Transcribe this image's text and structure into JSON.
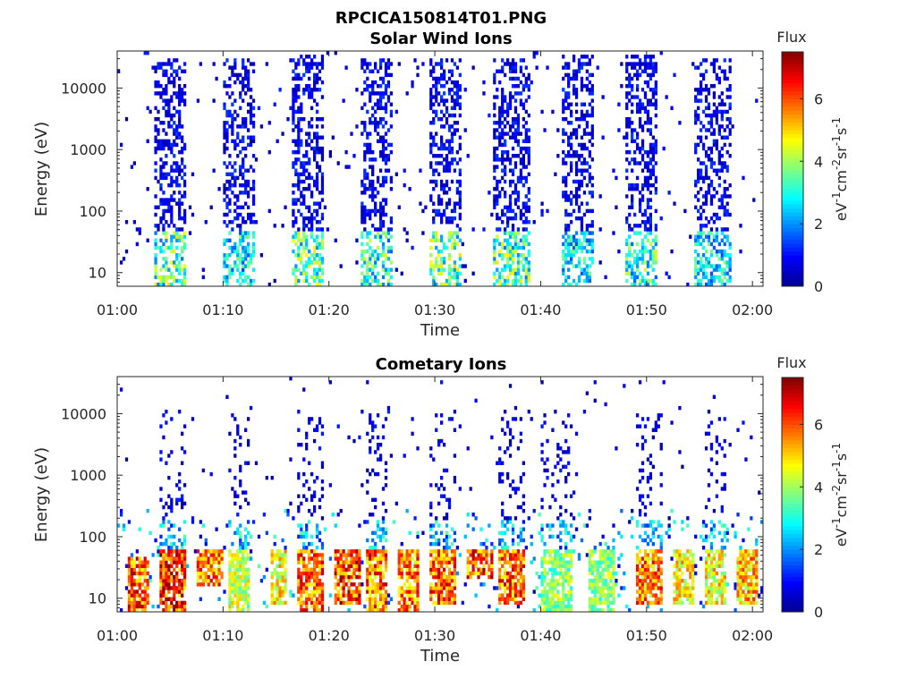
{
  "figure": {
    "title": "RPCICA150814T01.PNG"
  },
  "colors": {
    "colormap": [
      "#00008f",
      "#0000ff",
      "#0080ff",
      "#00ffff",
      "#80ff80",
      "#ffff00",
      "#ff8000",
      "#ff0000",
      "#800000"
    ]
  },
  "chart_data": [
    {
      "type": "heatmap",
      "title": "Solar Wind Ions",
      "xlabel": "Time",
      "ylabel": "Energy (eV)",
      "x_ticks": [
        "01:00",
        "01:10",
        "01:20",
        "01:30",
        "01:40",
        "01:50",
        "02:00"
      ],
      "x_range_minutes": [
        0,
        61
      ],
      "y_scale": "log",
      "y_ticks": [
        "10",
        "100",
        "1000",
        "10000"
      ],
      "y_range": [
        6,
        40000
      ],
      "colorbar": {
        "title": "Flux",
        "label": "eV-1cm-2sr-1s-1",
        "ticks": [
          "0",
          "2",
          "4",
          "6"
        ],
        "range": [
          0,
          7.5
        ]
      },
      "bursts": [
        {
          "start": 3.5,
          "end": 6.5,
          "emin": 6,
          "emax": 30000,
          "low_flux": 4.5
        },
        {
          "start": 10,
          "end": 13,
          "emin": 6,
          "emax": 30000,
          "low_flux": 3.5
        },
        {
          "start": 16.5,
          "end": 19.5,
          "emin": 6,
          "emax": 35000,
          "low_flux": 4.5
        },
        {
          "start": 23,
          "end": 26,
          "emin": 6,
          "emax": 30000,
          "low_flux": 4.0
        },
        {
          "start": 29.5,
          "end": 32.5,
          "emin": 6,
          "emax": 30000,
          "low_flux": 4.5
        },
        {
          "start": 35.5,
          "end": 39,
          "emin": 6,
          "emax": 30000,
          "low_flux": 4.5
        },
        {
          "start": 42,
          "end": 45,
          "emin": 6,
          "emax": 35000,
          "low_flux": 3.5
        },
        {
          "start": 48,
          "end": 51,
          "emin": 6,
          "emax": 35000,
          "low_flux": 4.0
        },
        {
          "start": 54.5,
          "end": 58,
          "emin": 6,
          "emax": 30000,
          "low_flux": 3.5
        }
      ]
    },
    {
      "type": "heatmap",
      "title": "Cometary Ions",
      "xlabel": "Time",
      "ylabel": "Energy (eV)",
      "x_ticks": [
        "01:00",
        "01:10",
        "01:20",
        "01:30",
        "01:40",
        "01:50",
        "02:00"
      ],
      "x_range_minutes": [
        0,
        61
      ],
      "y_scale": "log",
      "y_ticks": [
        "10",
        "100",
        "1000",
        "10000"
      ],
      "y_range": [
        6,
        40000
      ],
      "colorbar": {
        "title": "Flux",
        "label": "eV-1cm-2sr-1s-1",
        "ticks": [
          "0",
          "2",
          "4",
          "6"
        ],
        "range": [
          0,
          7.5
        ]
      },
      "bursts": [
        {
          "start": 1,
          "end": 3,
          "emin": 6,
          "emax": 50,
          "peak_flux": 7.0
        },
        {
          "start": 4,
          "end": 6.5,
          "emin": 6,
          "emax": 12000,
          "peak_flux": 7.2
        },
        {
          "start": 7.5,
          "end": 10,
          "emin": 15,
          "emax": 60,
          "peak_flux": 6.5
        },
        {
          "start": 10.5,
          "end": 12.5,
          "emin": 6,
          "emax": 10000,
          "peak_flux": 5.0
        },
        {
          "start": 14.5,
          "end": 16,
          "emin": 8,
          "emax": 60,
          "peak_flux": 5.5
        },
        {
          "start": 17,
          "end": 19.5,
          "emin": 6,
          "emax": 11000,
          "peak_flux": 6.8
        },
        {
          "start": 20.5,
          "end": 23,
          "emin": 8,
          "emax": 60,
          "peak_flux": 7.2
        },
        {
          "start": 23.5,
          "end": 25.5,
          "emin": 6,
          "emax": 10000,
          "peak_flux": 6.8
        },
        {
          "start": 26.5,
          "end": 28.5,
          "emin": 6,
          "emax": 60,
          "peak_flux": 6.5
        },
        {
          "start": 29.5,
          "end": 32,
          "emin": 8,
          "emax": 10000,
          "peak_flux": 6.8
        },
        {
          "start": 33,
          "end": 35.5,
          "emin": 20,
          "emax": 80,
          "peak_flux": 7.0
        },
        {
          "start": 36,
          "end": 38.5,
          "emin": 8,
          "emax": 11000,
          "peak_flux": 6.8
        },
        {
          "start": 40,
          "end": 43,
          "emin": 6,
          "emax": 10000,
          "peak_flux": 4.5
        },
        {
          "start": 44.5,
          "end": 47,
          "emin": 6,
          "emax": 80,
          "peak_flux": 4.5
        },
        {
          "start": 49,
          "end": 51.5,
          "emin": 8,
          "emax": 10000,
          "peak_flux": 6.5
        },
        {
          "start": 52.5,
          "end": 54.5,
          "emin": 8,
          "emax": 60,
          "peak_flux": 5.5
        },
        {
          "start": 55.5,
          "end": 57.5,
          "emin": 8,
          "emax": 11000,
          "peak_flux": 5.5
        },
        {
          "start": 58.5,
          "end": 60.5,
          "emin": 8,
          "emax": 60,
          "peak_flux": 6.0
        }
      ]
    }
  ]
}
